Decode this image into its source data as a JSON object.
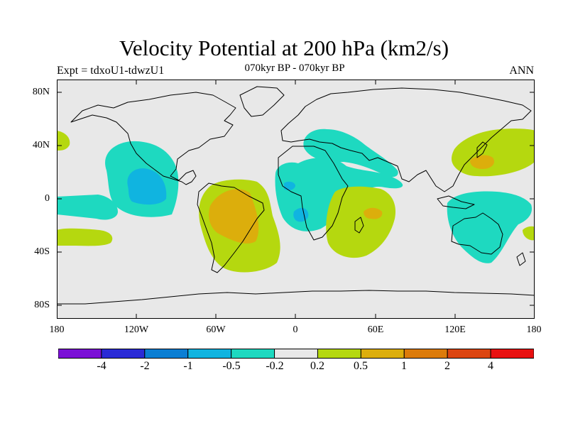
{
  "header": {
    "title": "Velocity Potential at 200 hPa (km2/s)",
    "expt": "Expt = tdxoU1-tdwzU1",
    "period": "070kyr BP - 070kyr BP",
    "season": "ANN"
  },
  "axes": {
    "lat_labels": [
      "80N",
      "40N",
      "0",
      "40S",
      "80S"
    ],
    "lon_labels": [
      "180",
      "120W",
      "60W",
      "0",
      "60E",
      "120E",
      "180"
    ]
  },
  "colorbar": {
    "labels": [
      "-4",
      "-2",
      "-1",
      "-0.5",
      "-0.2",
      "0.2",
      "0.5",
      "1",
      "2",
      "4"
    ],
    "colors": [
      "#7b0fd6",
      "#2a2ad6",
      "#0a7ed3",
      "#10b4e0",
      "#1ed9c0",
      "#e8e8e8",
      "#b5d80f",
      "#dcae0c",
      "#dc7b0a",
      "#dc4510",
      "#e81010"
    ]
  },
  "map_colors": {
    "background": "#e8e8e8",
    "neg_02": "#1ed9c0",
    "neg_05": "#10b4e0",
    "pos_02": "#b5d80f",
    "pos_05": "#dcae0c"
  }
}
